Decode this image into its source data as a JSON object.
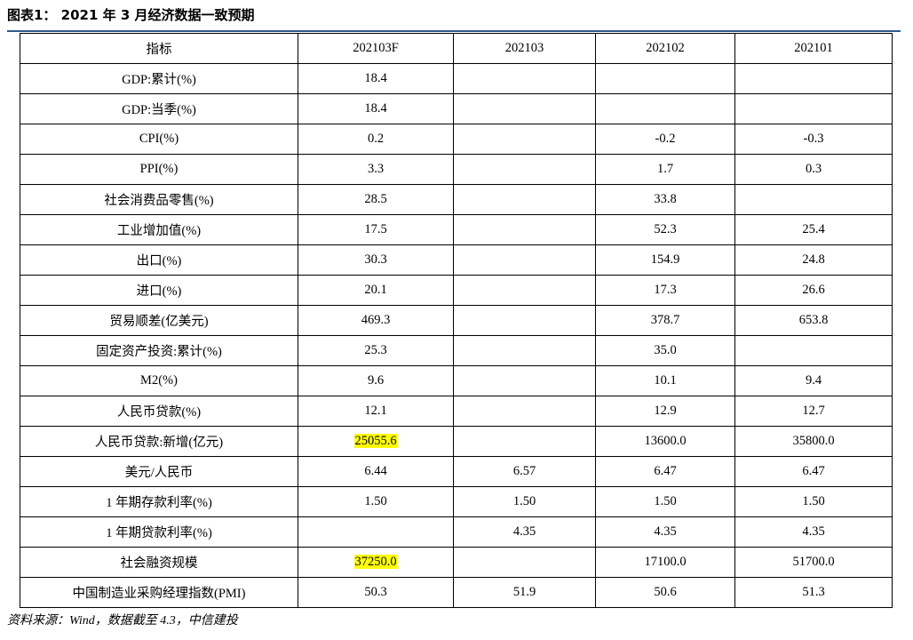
{
  "title": "图表1： 2021 年 3 月经济数据一致预期",
  "table": {
    "headers": [
      "指标",
      "202103F",
      "202103",
      "202102",
      "202101"
    ],
    "rows": [
      {
        "label": "GDP:累计(%)",
        "values": [
          "18.4",
          "",
          "",
          ""
        ]
      },
      {
        "label": "GDP:当季(%)",
        "values": [
          "18.4",
          "",
          "",
          ""
        ]
      },
      {
        "label": "CPI(%)",
        "values": [
          "0.2",
          "",
          "-0.2",
          "-0.3"
        ]
      },
      {
        "label": "PPI(%)",
        "values": [
          "3.3",
          "",
          "1.7",
          "0.3"
        ]
      },
      {
        "label": "社会消费品零售(%)",
        "values": [
          "28.5",
          "",
          "33.8",
          ""
        ]
      },
      {
        "label": "工业增加值(%)",
        "values": [
          "17.5",
          "",
          "52.3",
          "25.4"
        ]
      },
      {
        "label": "出口(%)",
        "values": [
          "30.3",
          "",
          "154.9",
          "24.8"
        ]
      },
      {
        "label": "进口(%)",
        "values": [
          "20.1",
          "",
          "17.3",
          "26.6"
        ]
      },
      {
        "label": "贸易顺差(亿美元)",
        "values": [
          "469.3",
          "",
          "378.7",
          "653.8"
        ]
      },
      {
        "label": "固定资产投资:累计(%)",
        "values": [
          "25.3",
          "",
          "35.0",
          ""
        ]
      },
      {
        "label": "M2(%)",
        "values": [
          "9.6",
          "",
          "10.1",
          "9.4"
        ]
      },
      {
        "label": "人民币贷款(%)",
        "values": [
          "12.1",
          "",
          "12.9",
          "12.7"
        ]
      },
      {
        "label": "人民币贷款:新增(亿元)",
        "values": [
          "25055.6",
          "",
          "13600.0",
          "35800.0"
        ]
      },
      {
        "label": "美元/人民币",
        "values": [
          "6.44",
          "6.57",
          "6.47",
          "6.47"
        ]
      },
      {
        "label": "1 年期存款利率(%)",
        "values": [
          "1.50",
          "1.50",
          "1.50",
          "1.50"
        ]
      },
      {
        "label": "1 年期贷款利率(%)",
        "values": [
          "",
          "4.35",
          "4.35",
          "4.35"
        ]
      },
      {
        "label": "社会融资规模",
        "values": [
          "37250.0",
          "",
          "17100.0",
          "51700.0"
        ]
      },
      {
        "label": "中国制造业采购经理指数(PMI)",
        "values": [
          "50.3",
          "51.9",
          "50.6",
          "51.3"
        ]
      }
    ],
    "highlighted_cells": [
      {
        "row": 12,
        "col": 0
      },
      {
        "row": 16,
        "col": 0
      }
    ]
  },
  "source": "资料来源：Wind，数据截至 4.3，中信建投",
  "colors": {
    "title_rule": "#2e5b8c",
    "highlight": "#ffff00",
    "border": "#000000"
  }
}
